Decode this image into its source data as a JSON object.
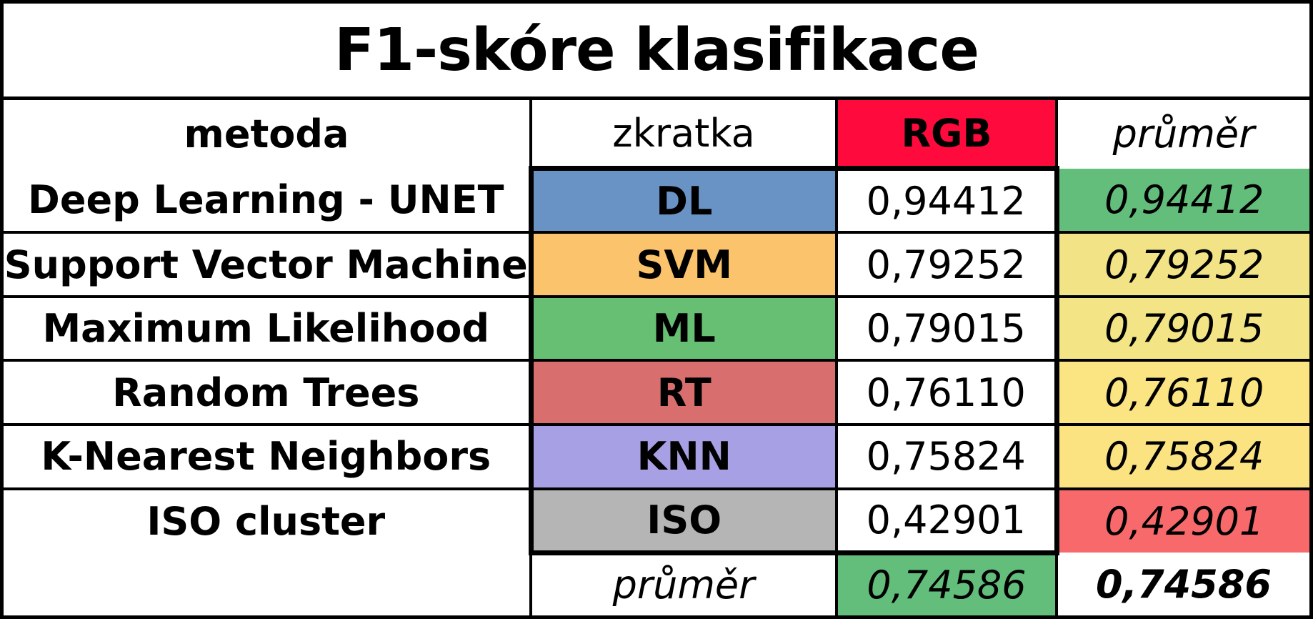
{
  "title": "F1-skóre klasifikace",
  "header": {
    "method": "metoda",
    "abbr": "zkratka",
    "rgb": "RGB",
    "avg": "průměr",
    "rgb_color": "#ff0a3c"
  },
  "rows": [
    {
      "method": "Deep Learning - UNET",
      "abbr": "DL",
      "abbr_color": "#6a93c5",
      "rgb": "0,94412",
      "avg": "0,94412",
      "avg_color": "#63be7b"
    },
    {
      "method": "Support Vector Machine",
      "abbr": "SVM",
      "abbr_color": "#fbc46c",
      "rgb": "0,79252",
      "avg": "0,79252",
      "avg_color": "#f2e486"
    },
    {
      "method": "Maximum Likelihood",
      "abbr": "ML",
      "abbr_color": "#66bf73",
      "rgb": "0,79015",
      "avg": "0,79015",
      "avg_color": "#f3e485"
    },
    {
      "method": "Random Trees",
      "abbr": "RT",
      "abbr_color": "#d86e6e",
      "rgb": "0,76110",
      "avg": "0,76110",
      "avg_color": "#fbe482"
    },
    {
      "method": "K-Nearest Neighbors",
      "abbr": "KNN",
      "abbr_color": "#a8a0e4",
      "rgb": "0,75824",
      "avg": "0,75824",
      "avg_color": "#fce382"
    },
    {
      "method": "ISO cluster",
      "abbr": "ISO",
      "abbr_color": "#b5b5b5",
      "rgb": "0,42901",
      "avg": "0,42901",
      "avg_color": "#f8696b"
    }
  ],
  "footer": {
    "label": "průměr",
    "rgb": "0,74586",
    "rgb_color": "#63be7b",
    "avg": "0,74586"
  }
}
